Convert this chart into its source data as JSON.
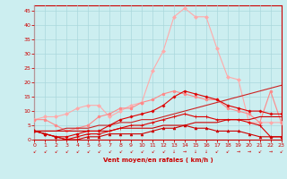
{
  "xlabel": "Vent moyen/en rafales ( km/h )",
  "x_ticks": [
    0,
    1,
    2,
    3,
    4,
    5,
    6,
    7,
    8,
    9,
    10,
    11,
    12,
    13,
    14,
    15,
    16,
    17,
    18,
    19,
    20,
    21,
    22,
    23
  ],
  "y_ticks": [
    0,
    5,
    10,
    15,
    20,
    25,
    30,
    35,
    40,
    45
  ],
  "ylim": [
    0,
    47
  ],
  "xlim": [
    0,
    23
  ],
  "background_color": "#cceef0",
  "grid_color": "#aad8dc",
  "line_pink_large": {
    "y": [
      7,
      8,
      8,
      9,
      11,
      12,
      12,
      8,
      10,
      12,
      13,
      24,
      31,
      43,
      46,
      43,
      43,
      32,
      22,
      21,
      6,
      6,
      6,
      6
    ],
    "color": "#ffaaaa",
    "marker": "D",
    "markersize": 2.0,
    "linewidth": 0.8
  },
  "line_pink_medium": {
    "y": [
      7,
      7,
      5,
      3,
      4,
      5,
      8,
      9,
      11,
      11,
      13,
      14,
      16,
      17,
      16,
      15,
      14,
      14,
      11,
      10,
      9,
      6,
      17,
      6
    ],
    "color": "#ff8888",
    "marker": "o",
    "markersize": 2.0,
    "linewidth": 0.8
  },
  "line_red_cross_upper": {
    "y": [
      3,
      2,
      1,
      1,
      2,
      3,
      3,
      5,
      7,
      8,
      9,
      10,
      12,
      15,
      17,
      16,
      15,
      14,
      12,
      11,
      10,
      10,
      9,
      9
    ],
    "color": "#dd0000",
    "marker": "P",
    "markersize": 2.0,
    "linewidth": 0.8
  },
  "line_red_linear": {
    "y": [
      3,
      3,
      3,
      4,
      4,
      4,
      5,
      5,
      6,
      6,
      7,
      7,
      8,
      9,
      10,
      11,
      12,
      13,
      14,
      15,
      16,
      17,
      18,
      19
    ],
    "color": "#cc2222",
    "marker": null,
    "linewidth": 0.8,
    "linestyle": "-"
  },
  "line_red_cross_lower": {
    "y": [
      3,
      2,
      1,
      0,
      1,
      2,
      2,
      3,
      4,
      5,
      5,
      6,
      7,
      8,
      9,
      8,
      8,
      7,
      7,
      7,
      6,
      5,
      1,
      1
    ],
    "color": "#dd0000",
    "marker": "+",
    "markersize": 3.0,
    "linewidth": 0.8
  },
  "line_red_triangle": {
    "y": [
      3,
      2,
      1,
      0,
      0,
      1,
      1,
      2,
      2,
      2,
      2,
      3,
      4,
      4,
      5,
      4,
      4,
      3,
      3,
      3,
      2,
      1,
      1,
      1
    ],
    "color": "#cc0000",
    "marker": "^",
    "markersize": 2.0,
    "linewidth": 0.8
  },
  "line_red_flat": {
    "y": [
      3,
      3,
      3,
      3,
      3,
      3,
      3,
      3,
      4,
      4,
      4,
      4,
      5,
      5,
      5,
      6,
      6,
      6,
      7,
      7,
      7,
      8,
      8,
      8
    ],
    "color": "#cc0000",
    "marker": null,
    "linewidth": 0.8,
    "linestyle": "-"
  },
  "wind_arrows": [
    "sw",
    "sw",
    "sw",
    "sw",
    "sw",
    "sw",
    "sw",
    "sw",
    "sw",
    "sw",
    "sw",
    "sw",
    "sw",
    "s",
    "e",
    "s",
    "s",
    "sw",
    "sw",
    "e",
    "e",
    "sw",
    "e",
    "sw"
  ]
}
